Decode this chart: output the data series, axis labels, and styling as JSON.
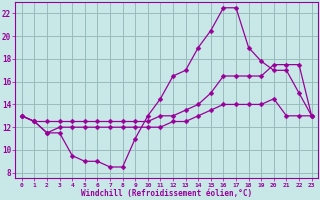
{
  "xlabel": "Windchill (Refroidissement éolien,°C)",
  "x_values": [
    0,
    1,
    2,
    3,
    4,
    5,
    6,
    7,
    8,
    9,
    10,
    11,
    12,
    13,
    14,
    15,
    16,
    17,
    18,
    19,
    20,
    21,
    22,
    23
  ],
  "line1": [
    13.0,
    12.5,
    11.5,
    11.5,
    9.5,
    9.0,
    9.0,
    8.5,
    8.5,
    11.0,
    13.0,
    14.5,
    16.5,
    17.0,
    19.0,
    20.5,
    22.5,
    22.5,
    19.0,
    17.8,
    17.0,
    17.0,
    15.0,
    13.0
  ],
  "line2": [
    13.0,
    12.5,
    12.5,
    12.5,
    12.5,
    12.5,
    12.5,
    12.5,
    12.5,
    12.5,
    12.5,
    13.0,
    13.0,
    13.5,
    14.0,
    15.0,
    16.5,
    16.5,
    16.5,
    16.5,
    17.5,
    17.5,
    17.5,
    13.0
  ],
  "line3": [
    13.0,
    12.5,
    11.5,
    12.0,
    12.0,
    12.0,
    12.0,
    12.0,
    12.0,
    12.0,
    12.0,
    12.0,
    12.5,
    12.5,
    13.0,
    13.5,
    14.0,
    14.0,
    14.0,
    14.0,
    14.5,
    13.0,
    13.0,
    13.0
  ],
  "line_color": "#990099",
  "bg_color": "#c8e8e8",
  "grid_color": "#99bbbb",
  "ylim": [
    7.5,
    23.0
  ],
  "xlim": [
    -0.5,
    23.5
  ],
  "yticks": [
    8,
    10,
    12,
    14,
    16,
    18,
    20,
    22
  ],
  "xticks": [
    0,
    1,
    2,
    3,
    4,
    5,
    6,
    7,
    8,
    9,
    10,
    11,
    12,
    13,
    14,
    15,
    16,
    17,
    18,
    19,
    20,
    21,
    22,
    23
  ],
  "marker": "D",
  "markersize": 2.5,
  "linewidth": 0.9
}
